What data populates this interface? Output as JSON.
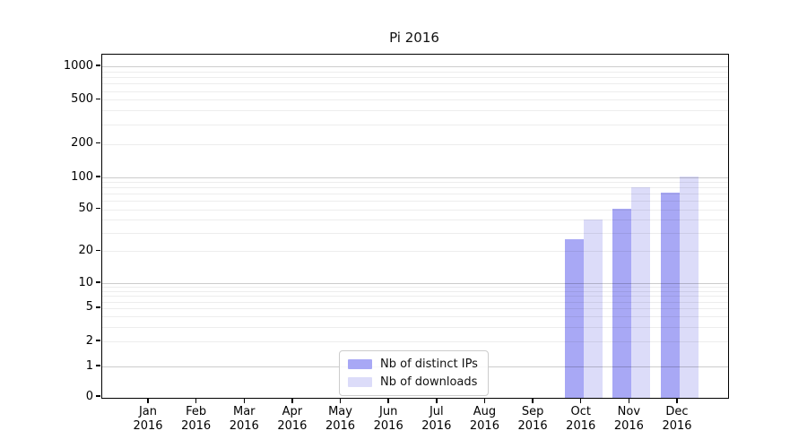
{
  "chart_data": {
    "type": "bar",
    "title": "Pi 2016",
    "categories": [
      "Jan 2016",
      "Feb 2016",
      "Mar 2016",
      "Apr 2016",
      "May 2016",
      "Jun 2016",
      "Jul 2016",
      "Aug 2016",
      "Sep 2016",
      "Oct 2016",
      "Nov 2016",
      "Dec 2016"
    ],
    "series": [
      {
        "name": "Nb of distinct IPs",
        "color": "#a8a8f5",
        "values": [
          null,
          null,
          null,
          null,
          null,
          null,
          null,
          null,
          null,
          26,
          51,
          72
        ]
      },
      {
        "name": "Nb of downloads",
        "color": "#dcdcf9",
        "values": [
          null,
          null,
          null,
          null,
          null,
          null,
          null,
          null,
          null,
          40,
          80,
          101
        ]
      }
    ],
    "yscale": "symlog",
    "yticks": [
      0,
      1,
      2,
      5,
      10,
      20,
      50,
      100,
      200,
      500,
      1000
    ],
    "ylim": [
      0,
      1270
    ],
    "xlabel": "",
    "ylabel": "",
    "grid": true,
    "legend_position": "lower center"
  },
  "colors": {
    "background": "#ffffff",
    "spine": "#000000",
    "grid_major": "#c9c9c9",
    "grid_minor": "#ededed",
    "legend_border": "#cccccc"
  }
}
